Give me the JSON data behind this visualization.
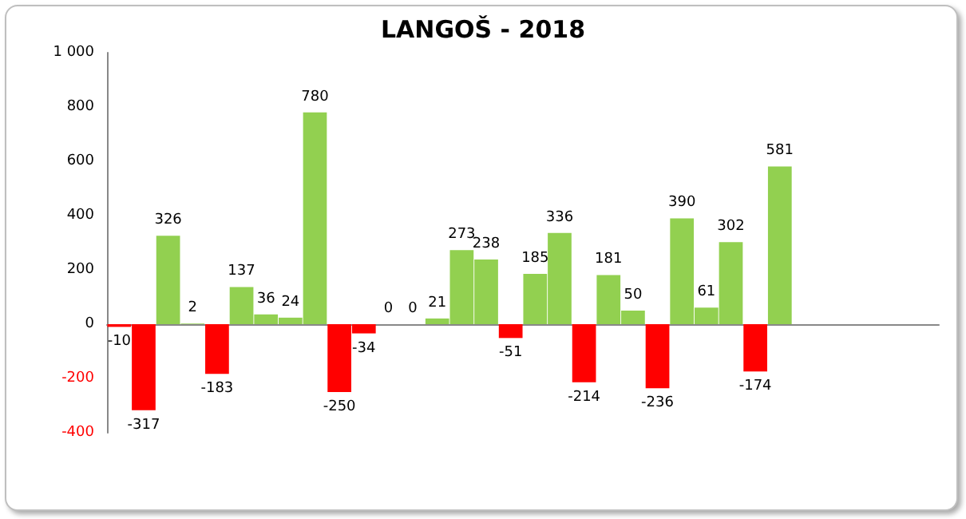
{
  "chart_data": {
    "type": "bar",
    "title": "LANGOŠ - 2018",
    "categories": [
      null,
      null,
      null,
      null,
      null,
      null,
      null,
      null,
      null,
      null,
      null,
      null,
      null,
      null,
      null,
      null,
      null,
      null,
      null,
      null,
      null,
      null,
      null,
      null,
      null,
      null,
      null,
      null,
      null,
      null,
      null,
      null,
      null,
      null
    ],
    "values": [
      -10,
      -317,
      326,
      2,
      -183,
      137,
      36,
      24,
      780,
      -250,
      -34,
      0,
      0,
      21,
      273,
      238,
      -51,
      185,
      336,
      -214,
      181,
      50,
      -236,
      390,
      61,
      302,
      -174,
      581,
      null,
      null,
      null,
      null,
      null,
      null
    ],
    "colors": [
      "#ff0000",
      "#ff0000",
      "#92d050",
      "#92d050",
      "#ff0000",
      "#92d050",
      "#92d050",
      "#92d050",
      "#92d050",
      "#ff0000",
      "#ff0000",
      "#92d050",
      "#92d050",
      "#92d050",
      "#92d050",
      "#92d050",
      "#ff0000",
      "#92d050",
      "#92d050",
      "#ff0000",
      "#92d050",
      "#92d050",
      "#ff0000",
      "#92d050",
      "#92d050",
      "#92d050",
      "#ff0000",
      "#92d050",
      null,
      null,
      null,
      null,
      null,
      null
    ],
    "ylim": [
      -400,
      1000
    ],
    "yticks": [
      -400,
      -200,
      0,
      200,
      400,
      600,
      800,
      {
        "value": 1000,
        "label": "1 000"
      }
    ],
    "data_labels": true
  }
}
